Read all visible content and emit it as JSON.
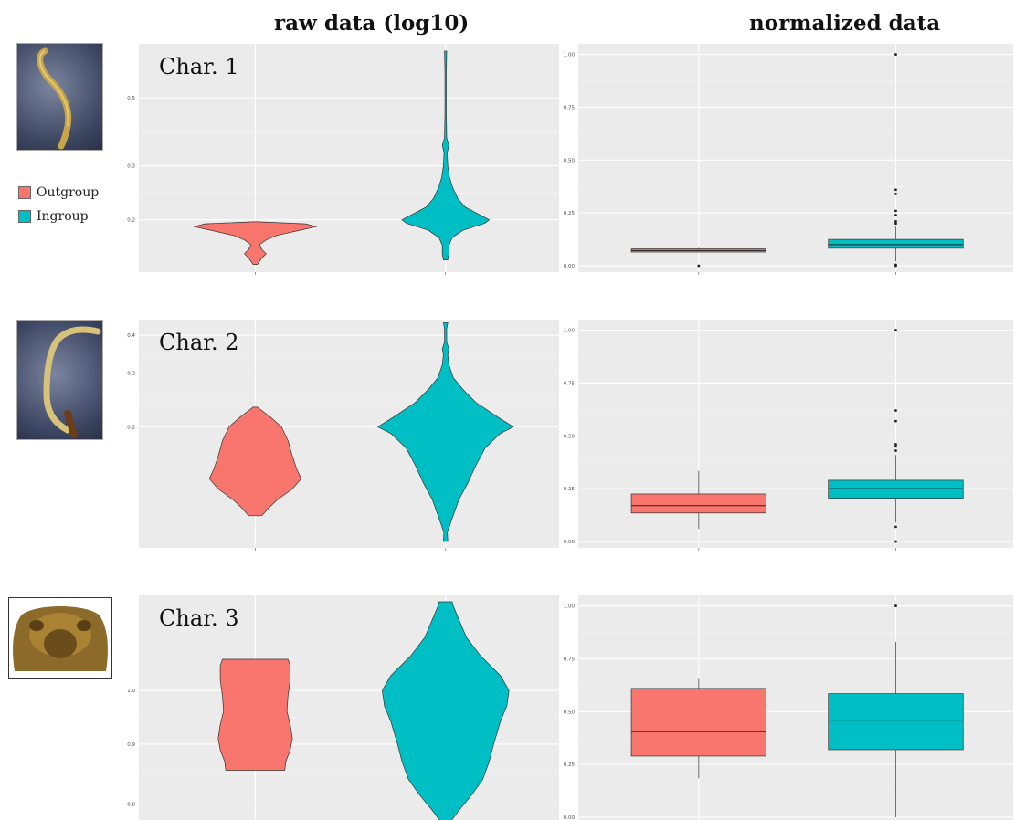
{
  "titles": {
    "raw": "raw data (log10)",
    "normalized": "normalized data"
  },
  "legend": [
    {
      "label": "Outgroup",
      "color": "#F8766D"
    },
    {
      "label": "Ingroup",
      "color": "#00BFC4"
    }
  ],
  "colors": {
    "outgroup": "#F8766D",
    "ingroup": "#00BFC4",
    "panel_bg": "#EBEBEB",
    "grid": "#FFFFFF"
  },
  "chart_data": [
    {
      "type": "violin",
      "title": "Char. 1",
      "xlabel": "",
      "ylabel": "",
      "ylim": [
        0.135,
        0.75
      ],
      "yscale": "log10",
      "yticks": [
        0.2,
        0.3,
        0.5
      ],
      "ytick_labels": [
        "0.2",
        "0.3",
        "0.5"
      ],
      "grid": true,
      "series": [
        {
          "name": "Outgroup",
          "min": 0.143,
          "max": 0.197,
          "profile": [
            [
              0.143,
              0.1
            ],
            [
              0.15,
              0.3
            ],
            [
              0.155,
              0.5
            ],
            [
              0.16,
              0.3
            ],
            [
              0.166,
              0.2
            ],
            [
              0.172,
              0.5
            ],
            [
              0.178,
              1.0
            ],
            [
              0.184,
              1.9
            ],
            [
              0.19,
              2.8
            ],
            [
              0.194,
              2.3
            ],
            [
              0.197,
              0.1
            ]
          ]
        },
        {
          "name": "Ingroup",
          "min": 0.148,
          "max": 0.71,
          "profile": [
            [
              0.148,
              0.1
            ],
            [
              0.155,
              0.15
            ],
            [
              0.165,
              0.15
            ],
            [
              0.175,
              0.3
            ],
            [
              0.185,
              0.8
            ],
            [
              0.195,
              1.8
            ],
            [
              0.2,
              2.0
            ],
            [
              0.207,
              1.6
            ],
            [
              0.22,
              0.9
            ],
            [
              0.235,
              0.55
            ],
            [
              0.255,
              0.32
            ],
            [
              0.275,
              0.18
            ],
            [
              0.3,
              0.1
            ],
            [
              0.33,
              0.07
            ],
            [
              0.35,
              0.15
            ],
            [
              0.37,
              0.05
            ],
            [
              0.45,
              0.03
            ],
            [
              0.6,
              0.03
            ],
            [
              0.71,
              0.05
            ]
          ]
        }
      ]
    },
    {
      "type": "box",
      "title": "",
      "xlabel": "",
      "ylabel": "",
      "ylim": [
        -0.03,
        1.05
      ],
      "yticks": [
        0.0,
        0.25,
        0.5,
        0.75,
        1.0
      ],
      "ytick_labels": [
        "0.00",
        "0.25",
        "0.50",
        "0.75",
        "1.00"
      ],
      "grid": true,
      "series": [
        {
          "name": "Outgroup",
          "q1": 0.065,
          "median": 0.072,
          "q3": 0.08,
          "whisker_low": 0.065,
          "whisker_high": 0.085,
          "outliers": [
            0.0
          ]
        },
        {
          "name": "Ingroup",
          "q1": 0.083,
          "median": 0.1,
          "q3": 0.125,
          "whisker_low": 0.02,
          "whisker_high": 0.185,
          "outliers": [
            0.0,
            0.005,
            0.2,
            0.21,
            0.24,
            0.26,
            0.34,
            0.36,
            1.0
          ]
        }
      ]
    },
    {
      "type": "violin",
      "title": "Char. 2",
      "xlabel": "",
      "ylabel": "",
      "ylim": [
        0.08,
        0.45
      ],
      "yscale": "log10",
      "yticks": [
        0.2,
        0.3,
        0.4
      ],
      "ytick_labels": [
        "0.2",
        "0.3",
        "0.4"
      ],
      "grid": true,
      "series": [
        {
          "name": "Outgroup",
          "min": 0.102,
          "max": 0.232,
          "profile": [
            [
              0.102,
              0.3
            ],
            [
              0.108,
              0.6
            ],
            [
              0.115,
              1.0
            ],
            [
              0.125,
              1.7
            ],
            [
              0.135,
              2.1
            ],
            [
              0.145,
              1.9
            ],
            [
              0.16,
              1.7
            ],
            [
              0.18,
              1.5
            ],
            [
              0.2,
              1.2
            ],
            [
              0.215,
              0.7
            ],
            [
              0.232,
              0.1
            ]
          ]
        },
        {
          "name": "Ingroup",
          "min": 0.084,
          "max": 0.44,
          "profile": [
            [
              0.084,
              0.1
            ],
            [
              0.09,
              0.08
            ],
            [
              0.1,
              0.3
            ],
            [
              0.115,
              0.6
            ],
            [
              0.13,
              1.0
            ],
            [
              0.15,
              1.4
            ],
            [
              0.17,
              1.8
            ],
            [
              0.19,
              2.5
            ],
            [
              0.2,
              3.1
            ],
            [
              0.215,
              2.4
            ],
            [
              0.24,
              1.4
            ],
            [
              0.265,
              0.8
            ],
            [
              0.29,
              0.35
            ],
            [
              0.32,
              0.15
            ],
            [
              0.345,
              0.1
            ],
            [
              0.36,
              0.15
            ],
            [
              0.38,
              0.05
            ],
            [
              0.42,
              0.05
            ],
            [
              0.44,
              0.1
            ]
          ]
        }
      ]
    },
    {
      "type": "box",
      "title": "",
      "xlabel": "",
      "ylabel": "",
      "ylim": [
        -0.03,
        1.05
      ],
      "yticks": [
        0.0,
        0.25,
        0.5,
        0.75,
        1.0
      ],
      "ytick_labels": [
        "0.00",
        "0.25",
        "0.50",
        "0.75",
        "1.00"
      ],
      "grid": true,
      "series": [
        {
          "name": "Outgroup",
          "q1": 0.135,
          "median": 0.17,
          "q3": 0.225,
          "whisker_low": 0.06,
          "whisker_high": 0.335,
          "outliers": []
        },
        {
          "name": "Ingroup",
          "q1": 0.205,
          "median": 0.25,
          "q3": 0.29,
          "whisker_low": 0.09,
          "whisker_high": 0.41,
          "outliers": [
            0.0,
            0.07,
            0.43,
            0.45,
            0.46,
            0.57,
            0.62,
            1.0
          ]
        }
      ]
    },
    {
      "type": "violin",
      "title": "Char. 3",
      "xlabel": "",
      "ylabel": "",
      "ylim": [
        0.77,
        1.205
      ],
      "yscale": "log10",
      "yticks": [
        0.8,
        0.9,
        1.0
      ],
      "ytick_labels": [
        "0.8",
        "0.9",
        "1.0"
      ],
      "grid": true,
      "series": [
        {
          "name": "Outgroup",
          "min": 0.855,
          "max": 1.063,
          "profile": [
            [
              0.855,
              1.35
            ],
            [
              0.87,
              1.4
            ],
            [
              0.89,
              1.6
            ],
            [
              0.91,
              1.7
            ],
            [
              0.935,
              1.6
            ],
            [
              0.96,
              1.45
            ],
            [
              0.99,
              1.5
            ],
            [
              1.02,
              1.6
            ],
            [
              1.05,
              1.6
            ],
            [
              1.063,
              1.5
            ]
          ]
        },
        {
          "name": "Ingroup",
          "min": 0.772,
          "max": 1.19,
          "profile": [
            [
              0.772,
              0.2
            ],
            [
              0.79,
              0.6
            ],
            [
              0.815,
              1.2
            ],
            [
              0.84,
              1.7
            ],
            [
              0.87,
              2.0
            ],
            [
              0.9,
              2.2
            ],
            [
              0.94,
              2.5
            ],
            [
              0.97,
              2.8
            ],
            [
              1.0,
              2.9
            ],
            [
              1.03,
              2.5
            ],
            [
              1.07,
              1.6
            ],
            [
              1.11,
              0.95
            ],
            [
              1.15,
              0.6
            ],
            [
              1.18,
              0.35
            ],
            [
              1.19,
              0.3
            ]
          ]
        }
      ]
    },
    {
      "type": "box",
      "title": "",
      "xlabel": "",
      "ylabel": "",
      "ylim": [
        -0.03,
        1.05
      ],
      "yticks": [
        0.0,
        0.25,
        0.5,
        0.75,
        1.0
      ],
      "ytick_labels": [
        "0.00",
        "0.25",
        "0.50",
        "0.75",
        "1.00"
      ],
      "grid": true,
      "series": [
        {
          "name": "Outgroup",
          "q1": 0.29,
          "median": 0.405,
          "q3": 0.61,
          "whisker_low": 0.185,
          "whisker_high": 0.655,
          "outliers": []
        },
        {
          "name": "Ingroup",
          "q1": 0.32,
          "median": 0.46,
          "q3": 0.585,
          "whisker_low": 0.0,
          "whisker_high": 0.83,
          "outliers": [
            1.0
          ]
        }
      ]
    }
  ]
}
